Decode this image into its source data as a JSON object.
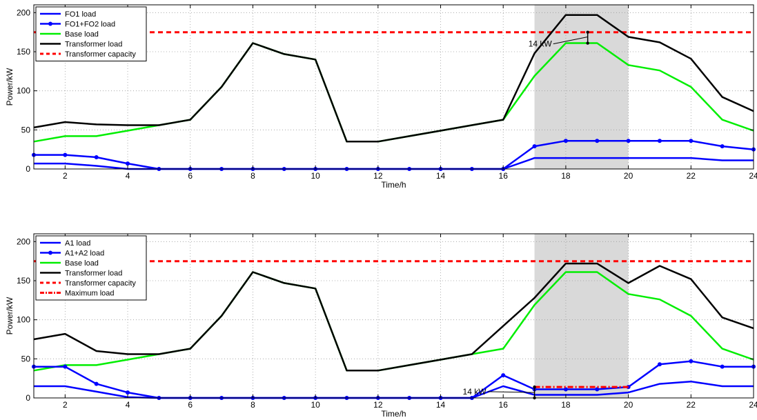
{
  "chart_data": [
    {
      "type": "line",
      "xlabel": "Time/h",
      "ylabel": "Power/kW",
      "xlim": [
        1,
        24
      ],
      "ylim": [
        0,
        210
      ],
      "xticks": [
        2,
        4,
        6,
        8,
        10,
        12,
        14,
        16,
        18,
        20,
        22,
        24
      ],
      "yticks": [
        0,
        50,
        100,
        150,
        200
      ],
      "grid": true,
      "legend_position": "top-left",
      "shaded_interval": [
        17,
        20
      ],
      "x": [
        1,
        2,
        3,
        4,
        5,
        6,
        7,
        8,
        9,
        10,
        11,
        12,
        13,
        14,
        15,
        16,
        17,
        18,
        19,
        20,
        21,
        22,
        23,
        24
      ],
      "series": [
        {
          "name": "FO1 load",
          "color": "#0000ff",
          "marker": "none",
          "style": "solid",
          "values": [
            7,
            7,
            4,
            0,
            0,
            0,
            0,
            0,
            0,
            0,
            0,
            0,
            0,
            0,
            0,
            0,
            14,
            14,
            14,
            14,
            14,
            14,
            11,
            11
          ]
        },
        {
          "name": "FO1+FO2 load",
          "color": "#0000ff",
          "marker": "dot",
          "style": "solid",
          "values": [
            18,
            18,
            15,
            7,
            0,
            0,
            0,
            0,
            0,
            0,
            0,
            0,
            0,
            0,
            0,
            0,
            29,
            36,
            36,
            36,
            36,
            36,
            29,
            25
          ]
        },
        {
          "name": "Base load",
          "color": "#00ee00",
          "marker": "none",
          "style": "solid",
          "values": [
            35,
            42,
            42,
            49,
            56,
            63,
            105,
            161,
            147,
            140,
            35,
            35,
            42,
            49,
            56,
            63,
            119,
            161,
            161,
            133,
            126,
            105,
            63,
            49
          ]
        },
        {
          "name": "Transformer load",
          "color": "#000000",
          "marker": "none",
          "style": "solid",
          "values": [
            53,
            60,
            57,
            56,
            56,
            63,
            105,
            161,
            147,
            140,
            35,
            35,
            42,
            49,
            56,
            63,
            148,
            197,
            197,
            169,
            162,
            141,
            92,
            74
          ]
        },
        {
          "name": "Transformer capacity",
          "color": "#ff0000",
          "marker": "none",
          "style": "dashed",
          "values": [
            175,
            175,
            175,
            175,
            175,
            175,
            175,
            175,
            175,
            175,
            175,
            175,
            175,
            175,
            175,
            175,
            175,
            175,
            175,
            175,
            175,
            175,
            175,
            175
          ]
        }
      ],
      "annotations": [
        {
          "text": "14 kW",
          "x_text": 17.6,
          "y_text": 160,
          "x_arrow": 18.7,
          "y_arrow": 169,
          "bracket": [
            161,
            175
          ]
        }
      ]
    },
    {
      "type": "line",
      "xlabel": "Time/h",
      "ylabel": "Power/kW",
      "xlim": [
        1,
        24
      ],
      "ylim": [
        0,
        210
      ],
      "xticks": [
        2,
        4,
        6,
        8,
        10,
        12,
        14,
        16,
        18,
        20,
        22,
        24
      ],
      "yticks": [
        0,
        50,
        100,
        150,
        200
      ],
      "grid": true,
      "legend_position": "top-left",
      "shaded_interval": [
        17,
        20
      ],
      "x": [
        1,
        2,
        3,
        4,
        5,
        6,
        7,
        8,
        9,
        10,
        11,
        12,
        13,
        14,
        15,
        16,
        17,
        18,
        19,
        20,
        21,
        22,
        23,
        24
      ],
      "series": [
        {
          "name": "A1 load",
          "color": "#0000ff",
          "marker": "none",
          "style": "solid",
          "values": [
            15,
            15,
            8,
            1,
            0,
            0,
            0,
            0,
            0,
            0,
            0,
            0,
            0,
            0,
            0,
            15,
            4,
            4,
            4,
            7,
            18,
            21,
            15,
            15
          ]
        },
        {
          "name": "A1+A2 load",
          "color": "#0000ff",
          "marker": "dot",
          "style": "solid",
          "values": [
            40,
            40,
            18,
            7,
            0,
            0,
            0,
            0,
            0,
            0,
            0,
            0,
            0,
            0,
            0,
            29,
            11,
            11,
            11,
            14,
            43,
            47,
            40,
            40
          ]
        },
        {
          "name": "Base load",
          "color": "#00ee00",
          "marker": "none",
          "style": "solid",
          "values": [
            35,
            42,
            42,
            49,
            56,
            63,
            105,
            161,
            147,
            140,
            35,
            35,
            42,
            49,
            56,
            63,
            119,
            161,
            161,
            133,
            126,
            105,
            63,
            49
          ]
        },
        {
          "name": "Transformer load",
          "color": "#000000",
          "marker": "none",
          "style": "solid",
          "values": [
            75,
            82,
            60,
            56,
            56,
            63,
            105,
            161,
            147,
            140,
            35,
            35,
            42,
            49,
            56,
            92,
            128,
            172,
            172,
            147,
            169,
            152,
            103,
            89
          ]
        },
        {
          "name": "Transformer capacity",
          "color": "#ff0000",
          "marker": "none",
          "style": "dashed",
          "values": [
            175,
            175,
            175,
            175,
            175,
            175,
            175,
            175,
            175,
            175,
            175,
            175,
            175,
            175,
            175,
            175,
            175,
            175,
            175,
            175,
            175,
            175,
            175,
            175
          ]
        },
        {
          "name": "Maximum load",
          "color": "#ff0000",
          "marker": "none",
          "style": "dashdot",
          "x_range": [
            17,
            20
          ],
          "values_const": 14
        }
      ],
      "annotations": [
        {
          "text": "14 kW",
          "x_text": 15.5,
          "y_text": 8,
          "x_arrow": 17,
          "y_arrow": 7,
          "bracket": [
            0,
            14
          ]
        }
      ]
    }
  ]
}
